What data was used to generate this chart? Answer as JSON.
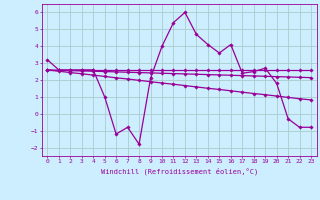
{
  "xlabel": "Windchill (Refroidissement éolien,°C)",
  "bg_color": "#cceeff",
  "grid_color": "#aacccc",
  "line_color": "#990099",
  "xlim": [
    -0.5,
    23.5
  ],
  "ylim": [
    -2.5,
    6.5
  ],
  "yticks": [
    -2,
    -1,
    0,
    1,
    2,
    3,
    4,
    5,
    6
  ],
  "xticks": [
    0,
    1,
    2,
    3,
    4,
    5,
    6,
    7,
    8,
    9,
    10,
    11,
    12,
    13,
    14,
    15,
    16,
    17,
    18,
    19,
    20,
    21,
    22,
    23
  ],
  "series": [
    [
      3.2,
      2.6,
      2.6,
      2.6,
      2.6,
      1.0,
      -1.2,
      -0.8,
      -1.8,
      2.1,
      4.0,
      5.4,
      6.0,
      4.7,
      4.1,
      3.6,
      4.1,
      2.4,
      2.5,
      2.7,
      1.8,
      -0.3,
      -0.8,
      -0.8
    ],
    [
      2.6,
      2.6,
      2.6,
      2.6,
      2.6,
      2.6,
      2.6,
      2.6,
      2.6,
      2.6,
      2.6,
      2.6,
      2.6,
      2.6,
      2.6,
      2.6,
      2.6,
      2.6,
      2.6,
      2.6,
      2.6,
      2.6,
      2.6,
      2.6
    ],
    [
      2.6,
      2.52,
      2.44,
      2.37,
      2.29,
      2.21,
      2.13,
      2.06,
      1.98,
      1.9,
      1.82,
      1.75,
      1.67,
      1.59,
      1.51,
      1.44,
      1.36,
      1.28,
      1.2,
      1.13,
      1.05,
      0.97,
      0.89,
      0.82
    ],
    [
      2.6,
      2.58,
      2.56,
      2.54,
      2.52,
      2.5,
      2.48,
      2.46,
      2.44,
      2.42,
      2.4,
      2.38,
      2.36,
      2.34,
      2.32,
      2.3,
      2.28,
      2.26,
      2.24,
      2.22,
      2.2,
      2.18,
      2.16,
      2.14
    ]
  ]
}
